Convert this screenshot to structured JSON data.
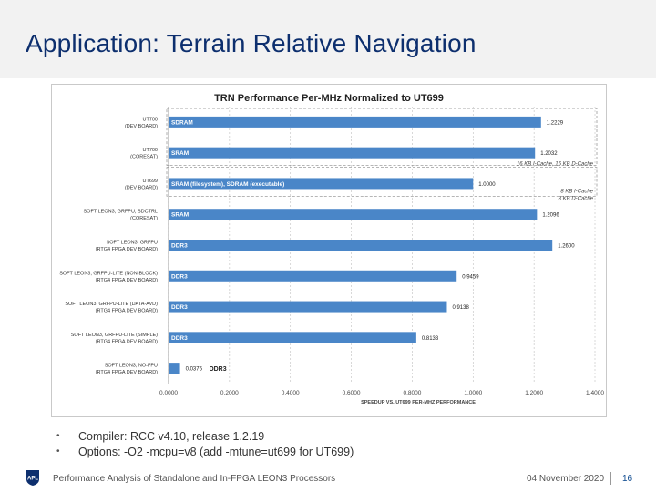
{
  "slide": {
    "title": "Application: Terrain Relative Navigation",
    "bullets": [
      "Compiler: RCC v4.10, release 1.2.19",
      "Options: -O2 -mcpu=v8 (add -mtune=ut699 for UT699)"
    ],
    "bullet_marker": "•"
  },
  "footer": {
    "logo_text": "APL",
    "title": "Performance Analysis of Standalone and In-FPGA LEON3 Processors",
    "date": "04 November 2020",
    "page": "16"
  },
  "colors": {
    "title": "#0d2f6e",
    "bar": "#4a86c8",
    "inbar_text": "#ffffff",
    "grid": "#bfbfbf",
    "dashed_box": "#8a8a8a"
  },
  "chart_data": {
    "type": "bar",
    "orientation": "horizontal",
    "title": "TRN Performance Per-MHz Normalized to UT699",
    "xlabel": "Speedup vs. UT699 Per-MHz Performance",
    "xlim": [
      0,
      1.4
    ],
    "xticks": [
      "0.0000",
      "0.2000",
      "0.4000",
      "0.6000",
      "0.8000",
      "1.0000",
      "1.2000",
      "1.4000"
    ],
    "grid": true,
    "categories": [
      [
        "UT700",
        "(Dev Board)"
      ],
      [
        "UT700",
        "(CORESAT)"
      ],
      [
        "UT699",
        "(Dev Board)"
      ],
      [
        "Soft LEON3, GRFPU, SDCTRL",
        "(CORESAT)"
      ],
      [
        "Soft LEON3, GRFPU",
        "(RTG4 FPGA Dev Board)"
      ],
      [
        "Soft LEON3, GRFPU-LITE (Non-Block)",
        "(RTG4 FPGA Dev Board)"
      ],
      [
        "Soft LEON3, GRFPU-LITE (Data-Avd)",
        "(RTG4 FPGA Dev Board)"
      ],
      [
        "Soft LEON3, GRFPU-LITE (Simple)",
        "(RTG4 FPGA Dev Board)"
      ],
      [
        "Soft LEON3, No-FPU",
        "(RTG4 FPGA Dev Board)"
      ]
    ],
    "values": [
      1.2229,
      1.2032,
      1.0,
      1.2096,
      1.26,
      0.9459,
      0.9138,
      0.8133,
      0.0376
    ],
    "value_labels": [
      "1.2229",
      "1.2032",
      "1.0000",
      "1.2096",
      "1.2600",
      "0.9459",
      "0.9138",
      "0.8133",
      "0.0376"
    ],
    "memory_labels": [
      "SDRAM",
      "SRAM",
      "SRAM (filesystem), SDRAM (executable)",
      "SRAM",
      "DDR3",
      "DDR3",
      "DDR3",
      "DDR3",
      "DDR3"
    ],
    "cache_annotations": [
      {
        "between": [
          1,
          2
        ],
        "lines": [
          "16 KB I-Cache, 16 KB D-Cache"
        ]
      },
      {
        "between": [
          2,
          3
        ],
        "lines": [
          "8 KB I-Cache",
          "8 KB D-Cache"
        ]
      }
    ]
  }
}
